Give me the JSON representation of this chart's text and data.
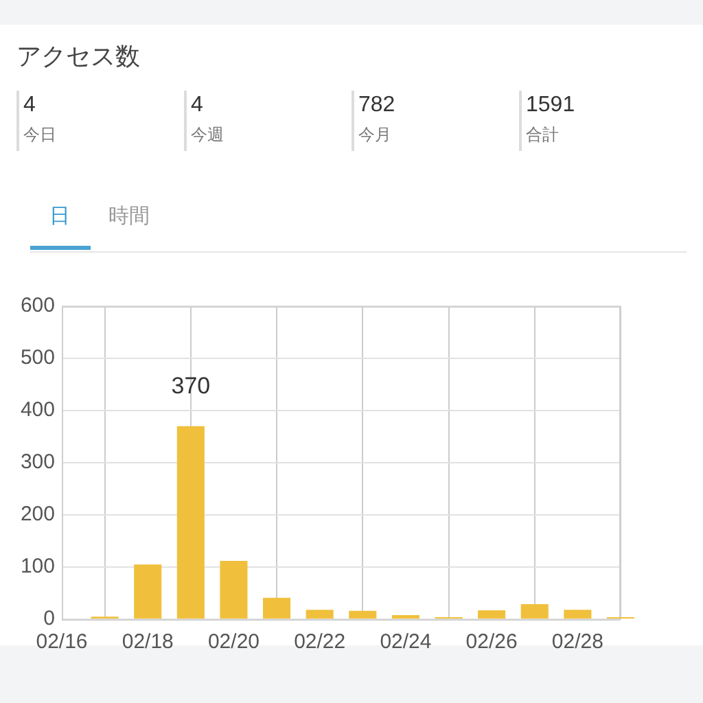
{
  "chart_data": [
    {
      "type": "other",
      "title": "アクセス数",
      "categories": [
        "今日",
        "今週",
        "今月",
        "合計"
      ],
      "values": [
        4,
        4,
        782,
        1591
      ],
      "data_labels": true
    },
    {
      "type": "bar",
      "annotations": [
        "日",
        "時間"
      ],
      "x": [
        "--02-17",
        "--02-18",
        "--02-19",
        "--02-20",
        "--02-21",
        "--02-22",
        "--02-23",
        "--02-24",
        "--02-25",
        "--02-26",
        "--02-27",
        "--02-28",
        "--02-29"
      ],
      "values": [
        5,
        105,
        370,
        112,
        41,
        18,
        16,
        8,
        4,
        17,
        29,
        18,
        4
      ],
      "value_labels": [
        null,
        null,
        "370",
        null,
        null,
        null,
        null,
        null,
        null,
        null,
        null,
        null,
        null
      ],
      "color": "#f0c03c",
      "xlim": [
        "--02-16",
        "--02-29"
      ],
      "xticks": [
        {
          "value": "--02-16",
          "label": "02/16"
        },
        {
          "value": "--02-18",
          "label": "02/18"
        },
        {
          "value": "--02-20",
          "label": "02/20"
        },
        {
          "value": "--02-22",
          "label": "02/22"
        },
        {
          "value": "--02-24",
          "label": "02/24"
        },
        {
          "value": "--02-26",
          "label": "02/26"
        },
        {
          "value": "--02-28",
          "label": "02/28"
        }
      ],
      "ylim": [
        0,
        600
      ],
      "yticks": [
        0,
        100,
        200,
        300,
        400,
        500,
        600
      ],
      "grid": true
    }
  ]
}
